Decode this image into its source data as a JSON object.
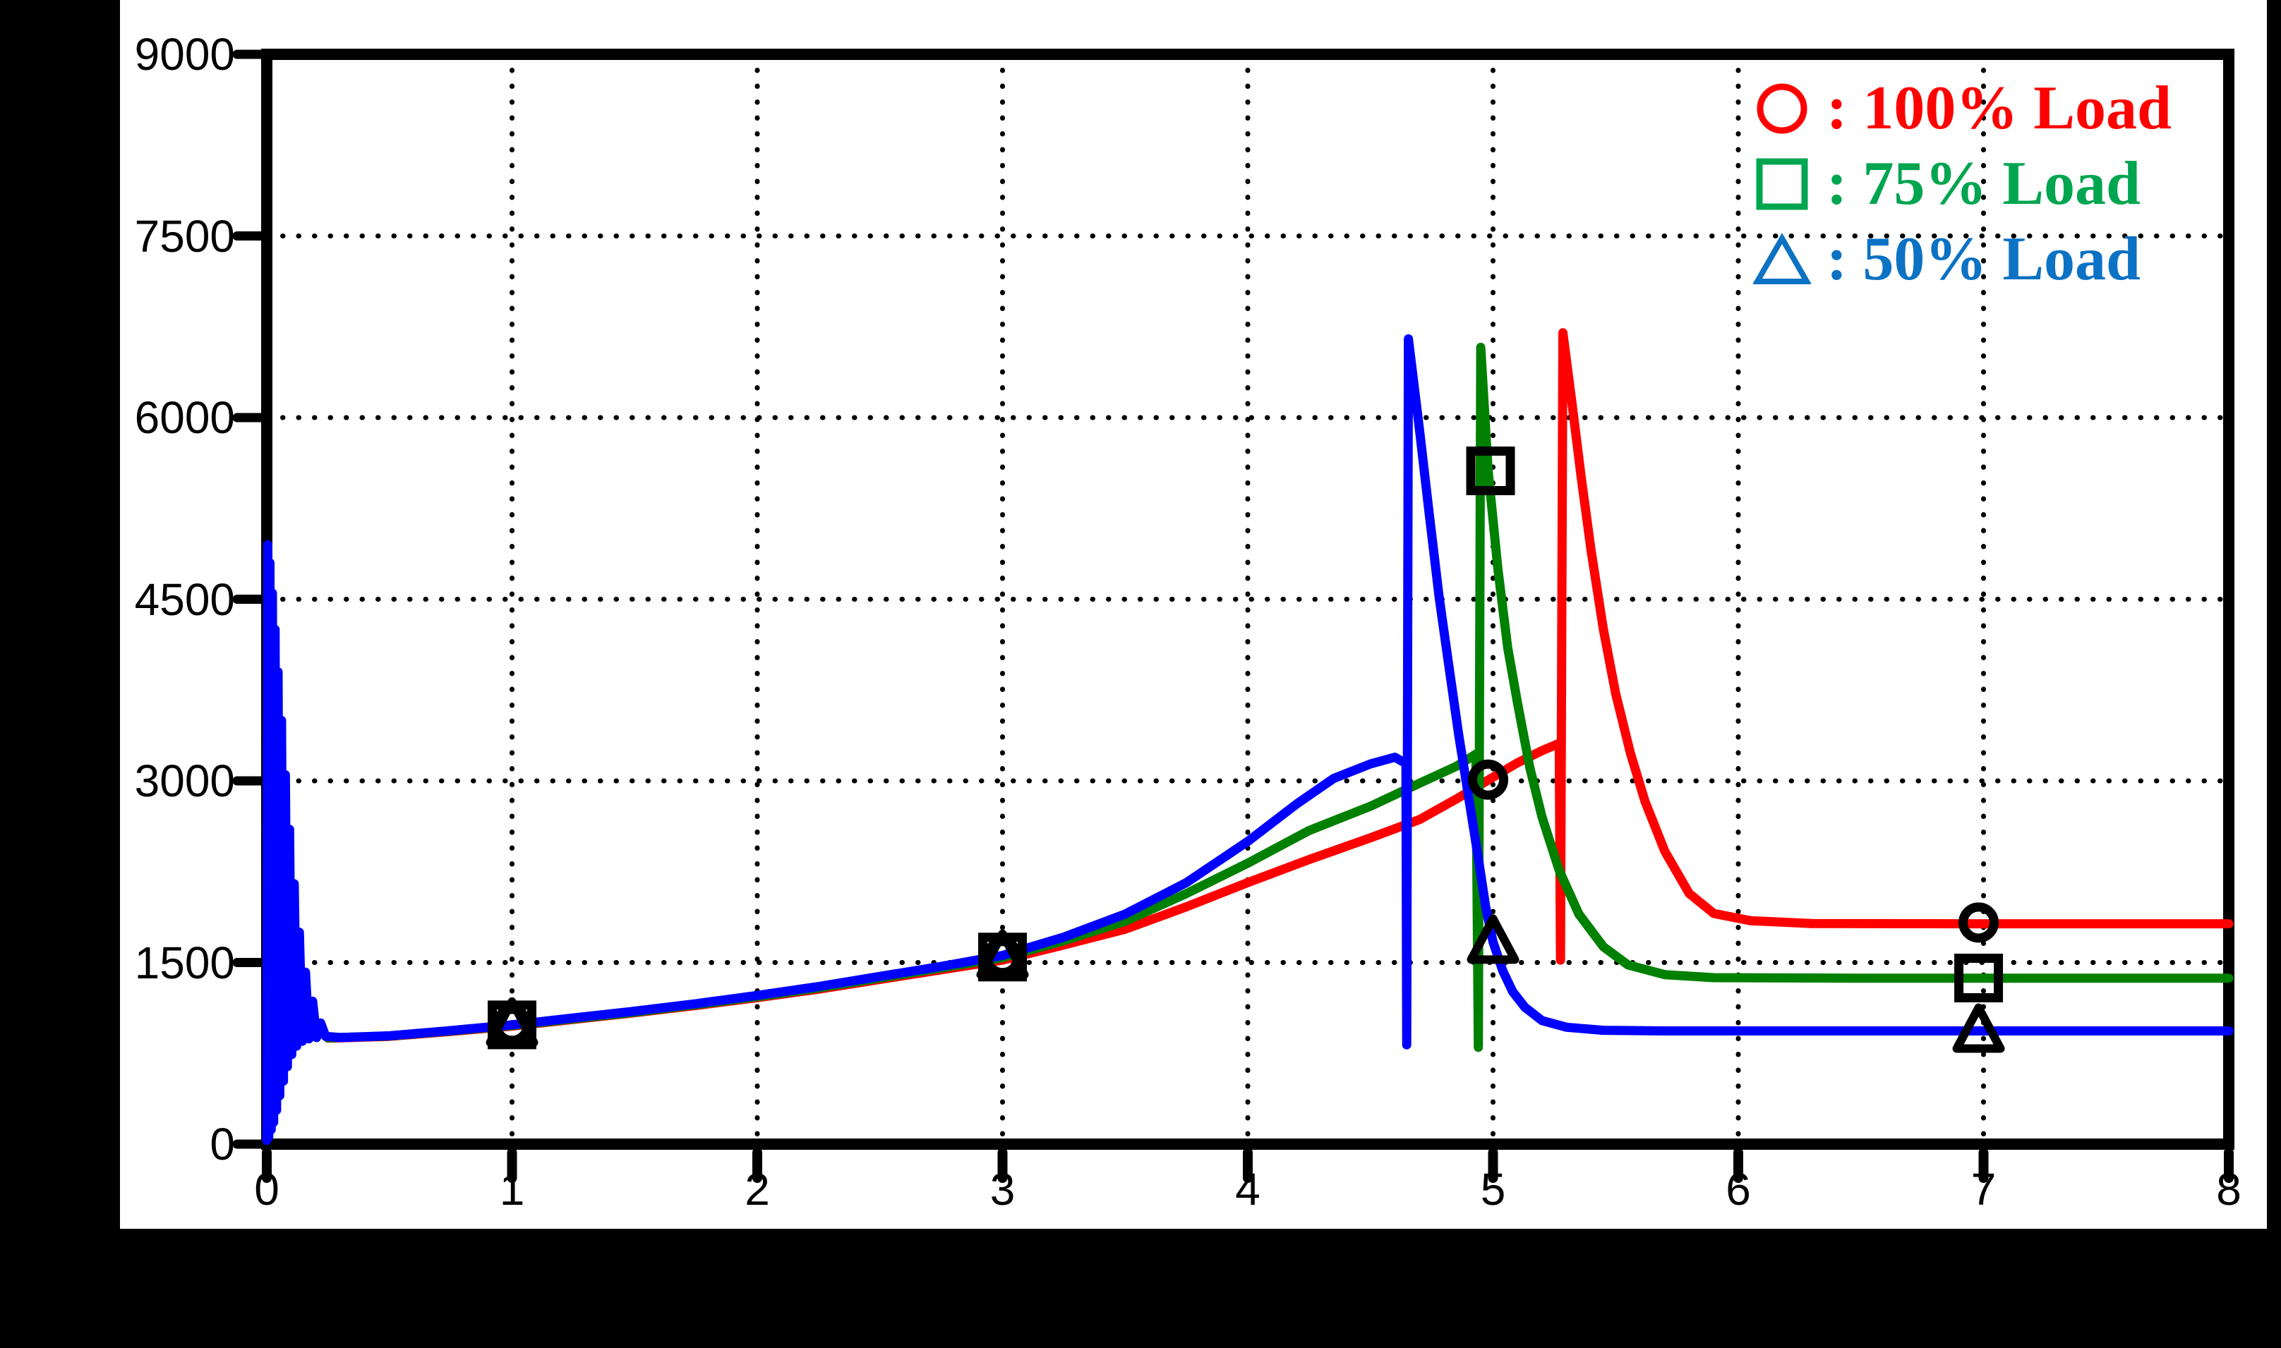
{
  "figure": {
    "background_color": "#000000",
    "paper_color": "#FFFFFF",
    "frame_color": "#000000",
    "grid_dot_color": "#000000"
  },
  "chart_data": {
    "type": "line",
    "title": "",
    "xlabel": "",
    "ylabel": "",
    "xlim": [
      0,
      8
    ],
    "ylim": [
      0,
      9000
    ],
    "grid": "dotted-both-axes",
    "legend_position": "top-right",
    "xticks": [
      0,
      1,
      2,
      3,
      4,
      5,
      6,
      7,
      8
    ],
    "yticks": [
      0,
      1500,
      3000,
      4500,
      6000,
      7500,
      9000
    ],
    "x_tick_labels": [
      "0",
      "1",
      "2",
      "3",
      "4",
      "5",
      "6",
      "7",
      "8"
    ],
    "y_tick_labels": [
      "0",
      "1500",
      "3000",
      "4500",
      "6000",
      "7500",
      "9000"
    ],
    "series": [
      {
        "name": "100% Load",
        "color": "#FF0000",
        "marker": "circle",
        "points": [
          [
            0.25,
            875
          ],
          [
            0.5,
            890
          ],
          [
            0.75,
            930
          ],
          [
            1.0,
            975
          ],
          [
            1.25,
            1030
          ],
          [
            1.5,
            1085
          ],
          [
            1.75,
            1145
          ],
          [
            2.0,
            1210
          ],
          [
            2.25,
            1280
          ],
          [
            2.5,
            1360
          ],
          [
            2.75,
            1440
          ],
          [
            3.0,
            1520
          ],
          [
            3.25,
            1645
          ],
          [
            3.5,
            1775
          ],
          [
            3.75,
            1960
          ],
          [
            4.0,
            2160
          ],
          [
            4.25,
            2350
          ],
          [
            4.5,
            2530
          ],
          [
            4.7,
            2680
          ],
          [
            4.85,
            2850
          ],
          [
            5.0,
            3030
          ],
          [
            5.1,
            3150
          ],
          [
            5.2,
            3250
          ],
          [
            5.27,
            3310
          ],
          [
            5.275,
            1520
          ],
          [
            5.285,
            6700
          ],
          [
            5.32,
            6150
          ],
          [
            5.36,
            5500
          ],
          [
            5.4,
            4900
          ],
          [
            5.45,
            4250
          ],
          [
            5.5,
            3720
          ],
          [
            5.56,
            3230
          ],
          [
            5.62,
            2830
          ],
          [
            5.7,
            2420
          ],
          [
            5.8,
            2070
          ],
          [
            5.9,
            1905
          ],
          [
            6.05,
            1845
          ],
          [
            6.3,
            1822
          ],
          [
            7.0,
            1820
          ],
          [
            8.0,
            1820
          ]
        ],
        "steady_state_value": 1820,
        "peak_value": 6700,
        "spike_time": 5.28
      },
      {
        "name": "75% Load",
        "color": "#008000",
        "marker": "square",
        "points": [
          [
            0.25,
            878
          ],
          [
            0.5,
            893
          ],
          [
            0.75,
            935
          ],
          [
            1.0,
            980
          ],
          [
            1.25,
            1035
          ],
          [
            1.5,
            1090
          ],
          [
            1.75,
            1152
          ],
          [
            2.0,
            1218
          ],
          [
            2.25,
            1290
          ],
          [
            2.5,
            1372
          ],
          [
            2.75,
            1455
          ],
          [
            3.0,
            1540
          ],
          [
            3.25,
            1680
          ],
          [
            3.5,
            1840
          ],
          [
            3.75,
            2070
          ],
          [
            4.0,
            2320
          ],
          [
            4.25,
            2590
          ],
          [
            4.5,
            2790
          ],
          [
            4.7,
            2980
          ],
          [
            4.85,
            3120
          ],
          [
            4.93,
            3220
          ],
          [
            4.94,
            800
          ],
          [
            4.95,
            6580
          ],
          [
            4.98,
            5560
          ],
          [
            5.02,
            4750
          ],
          [
            5.06,
            4100
          ],
          [
            5.1,
            3640
          ],
          [
            5.15,
            3110
          ],
          [
            5.2,
            2700
          ],
          [
            5.27,
            2260
          ],
          [
            5.35,
            1900
          ],
          [
            5.45,
            1630
          ],
          [
            5.55,
            1480
          ],
          [
            5.7,
            1400
          ],
          [
            5.9,
            1375
          ],
          [
            6.5,
            1370
          ],
          [
            8.0,
            1370
          ]
        ],
        "steady_state_value": 1370,
        "peak_value": 6580,
        "spike_time": 4.95
      },
      {
        "name": "50% Load",
        "color": "#0000FF",
        "marker": "triangle",
        "points": [
          [
            0.0,
            30
          ],
          [
            0.004,
            4950
          ],
          [
            0.008,
            60
          ],
          [
            0.013,
            4800
          ],
          [
            0.018,
            120
          ],
          [
            0.023,
            4550
          ],
          [
            0.028,
            180
          ],
          [
            0.034,
            4250
          ],
          [
            0.04,
            280
          ],
          [
            0.046,
            3900
          ],
          [
            0.053,
            400
          ],
          [
            0.06,
            3500
          ],
          [
            0.068,
            520
          ],
          [
            0.076,
            3050
          ],
          [
            0.084,
            640
          ],
          [
            0.093,
            2600
          ],
          [
            0.102,
            740
          ],
          [
            0.112,
            2150
          ],
          [
            0.122,
            810
          ],
          [
            0.133,
            1750
          ],
          [
            0.145,
            850
          ],
          [
            0.158,
            1420
          ],
          [
            0.172,
            870
          ],
          [
            0.187,
            1180
          ],
          [
            0.203,
            880
          ],
          [
            0.22,
            1000
          ],
          [
            0.24,
            890
          ],
          [
            0.3,
            880
          ],
          [
            0.5,
            895
          ],
          [
            0.75,
            938
          ],
          [
            1.0,
            985
          ],
          [
            1.25,
            1042
          ],
          [
            1.5,
            1098
          ],
          [
            1.75,
            1160
          ],
          [
            2.0,
            1228
          ],
          [
            2.25,
            1302
          ],
          [
            2.5,
            1385
          ],
          [
            2.75,
            1468
          ],
          [
            3.0,
            1558
          ],
          [
            3.25,
            1710
          ],
          [
            3.5,
            1900
          ],
          [
            3.75,
            2160
          ],
          [
            4.0,
            2500
          ],
          [
            4.2,
            2810
          ],
          [
            4.35,
            3020
          ],
          [
            4.5,
            3140
          ],
          [
            4.6,
            3195
          ],
          [
            4.63,
            3160
          ],
          [
            4.645,
            3160
          ],
          [
            4.648,
            820
          ],
          [
            4.655,
            6650
          ],
          [
            4.7,
            5900
          ],
          [
            4.74,
            5200
          ],
          [
            4.78,
            4520
          ],
          [
            4.82,
            3950
          ],
          [
            4.86,
            3380
          ],
          [
            4.9,
            2870
          ],
          [
            4.94,
            2360
          ],
          [
            4.97,
            1960
          ],
          [
            5.0,
            1670
          ],
          [
            5.04,
            1430
          ],
          [
            5.08,
            1260
          ],
          [
            5.13,
            1130
          ],
          [
            5.2,
            1020
          ],
          [
            5.3,
            965
          ],
          [
            5.45,
            940
          ],
          [
            5.7,
            935
          ],
          [
            8.0,
            935
          ]
        ],
        "steady_state_value": 935,
        "peak_value": 6650,
        "spike_time": 4.65,
        "startup_oscillation_peak": 5000
      }
    ],
    "point_markers": [
      {
        "shape": "circle",
        "x": 1.0,
        "y": 985
      },
      {
        "shape": "square",
        "x": 1.0,
        "y": 985
      },
      {
        "shape": "triangle",
        "x": 1.0,
        "y": 985
      },
      {
        "shape": "circle",
        "x": 3.0,
        "y": 1545
      },
      {
        "shape": "square",
        "x": 3.0,
        "y": 1545
      },
      {
        "shape": "triangle",
        "x": 3.0,
        "y": 1545
      },
      {
        "shape": "circle",
        "x": 4.98,
        "y": 3010
      },
      {
        "shape": "square",
        "x": 4.99,
        "y": 5560
      },
      {
        "shape": "triangle",
        "x": 5.0,
        "y": 1670
      },
      {
        "shape": "circle",
        "x": 6.98,
        "y": 1830
      },
      {
        "shape": "square",
        "x": 6.98,
        "y": 1372
      },
      {
        "shape": "triangle",
        "x": 6.98,
        "y": 935
      }
    ]
  },
  "legend": {
    "separator": ":",
    "items": [
      {
        "marker": "circle-icon",
        "label": "100% Load",
        "color": "#FF0000"
      },
      {
        "marker": "square-icon",
        "label": "75% Load",
        "color": "#00A550"
      },
      {
        "marker": "triangle-icon",
        "label": "50% Load",
        "color": "#0C72C4"
      }
    ]
  }
}
